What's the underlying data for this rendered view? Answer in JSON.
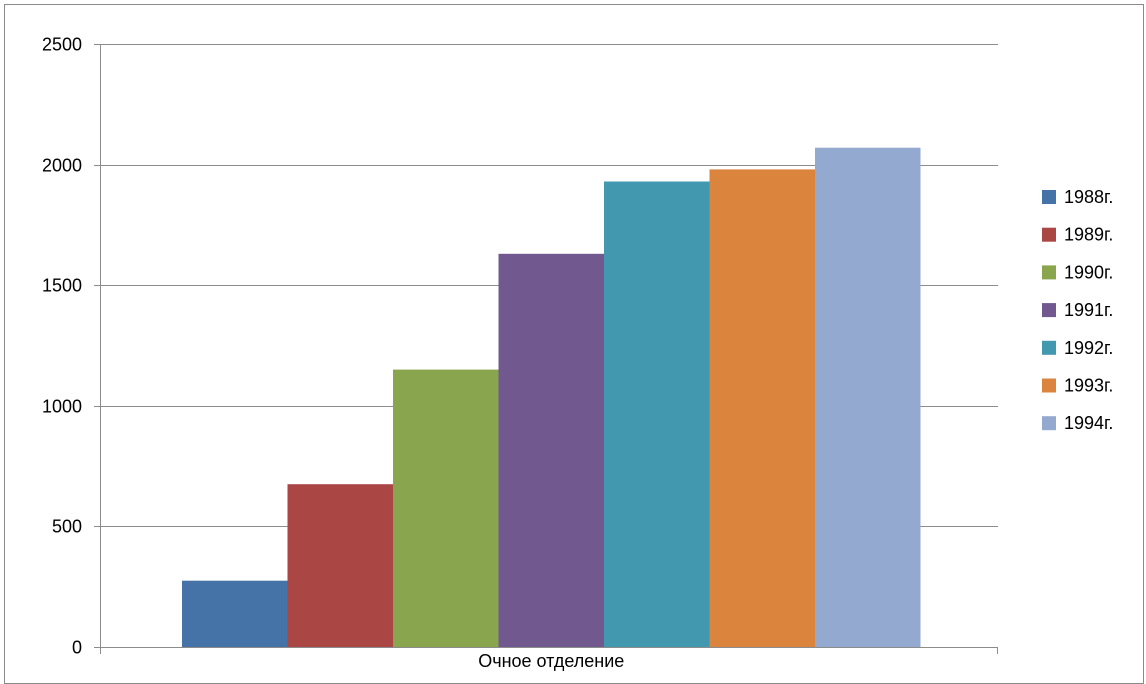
{
  "chart_data": {
    "type": "bar",
    "categories": [
      "Очное отделение"
    ],
    "series": [
      {
        "name": "1988г.",
        "values": [
          275
        ],
        "color": "#4572A7"
      },
      {
        "name": "1989г.",
        "values": [
          675
        ],
        "color": "#AA4643"
      },
      {
        "name": "1990г.",
        "values": [
          1150
        ],
        "color": "#89A54E"
      },
      {
        "name": "1991г.",
        "values": [
          1630
        ],
        "color": "#71588F"
      },
      {
        "name": "1992г.",
        "values": [
          1930
        ],
        "color": "#4198AF"
      },
      {
        "name": "1993г.",
        "values": [
          1980
        ],
        "color": "#DB843D"
      },
      {
        "name": "1994г.",
        "values": [
          2070
        ],
        "color": "#93A9CF"
      }
    ],
    "yticks": [
      "0",
      "500",
      "1000",
      "1500",
      "2000",
      "2500"
    ],
    "ylim": [
      0,
      2500
    ],
    "grid": true,
    "legend_position": "right"
  }
}
